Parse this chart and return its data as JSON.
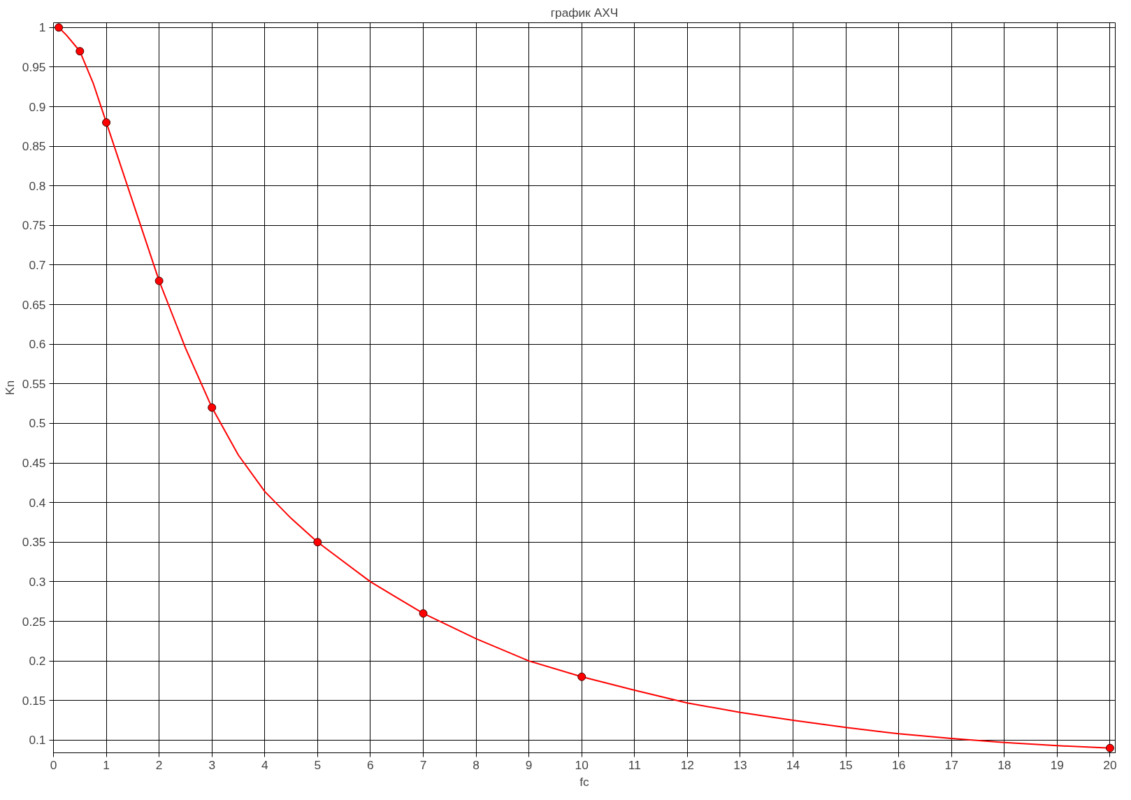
{
  "chart_data": {
    "type": "line",
    "title": "график АХЧ",
    "xlabel": "fc",
    "ylabel": "Kn",
    "series": [
      {
        "marker": "none",
        "color": "#ff0000",
        "x": [
          0.1,
          0.25,
          0.5,
          0.75,
          1,
          1.5,
          2,
          2.5,
          3,
          3.5,
          4,
          4.5,
          5,
          6,
          6.5,
          7,
          8,
          9,
          10,
          11,
          12,
          13,
          14,
          15,
          16,
          17,
          18,
          19,
          20
        ],
        "values": [
          1.0,
          0.99,
          0.97,
          0.93,
          0.88,
          0.78,
          0.68,
          0.595,
          0.52,
          0.46,
          0.414,
          0.38,
          0.35,
          0.3,
          0.28,
          0.26,
          0.228,
          0.2,
          0.18,
          0.163,
          0.147,
          0.135,
          0.125,
          0.116,
          0.108,
          0.102,
          0.097,
          0.093,
          0.09
        ]
      },
      {
        "type": "scatter",
        "marker": "circle",
        "color": "#ff0000",
        "x": [
          0.1,
          0.5,
          1,
          2,
          3,
          5,
          7,
          10,
          20
        ],
        "values": [
          1.0,
          0.97,
          0.88,
          0.68,
          0.52,
          0.35,
          0.26,
          0.18,
          0.09
        ]
      }
    ],
    "xlim": [
      0,
      20.1
    ],
    "ylim": [
      0.084,
      1.006
    ],
    "xticks": [
      0,
      1,
      2,
      3,
      4,
      5,
      6,
      7,
      8,
      9,
      10,
      11,
      12,
      13,
      14,
      15,
      16,
      17,
      18,
      19,
      20
    ],
    "yticks": [
      0.1,
      0.15,
      0.2,
      0.25,
      0.3,
      0.35,
      0.4,
      0.45,
      0.5,
      0.55,
      0.6,
      0.65,
      0.7,
      0.75,
      0.8,
      0.85,
      0.9,
      0.95,
      1
    ],
    "grid": true,
    "line_style": "solid"
  }
}
